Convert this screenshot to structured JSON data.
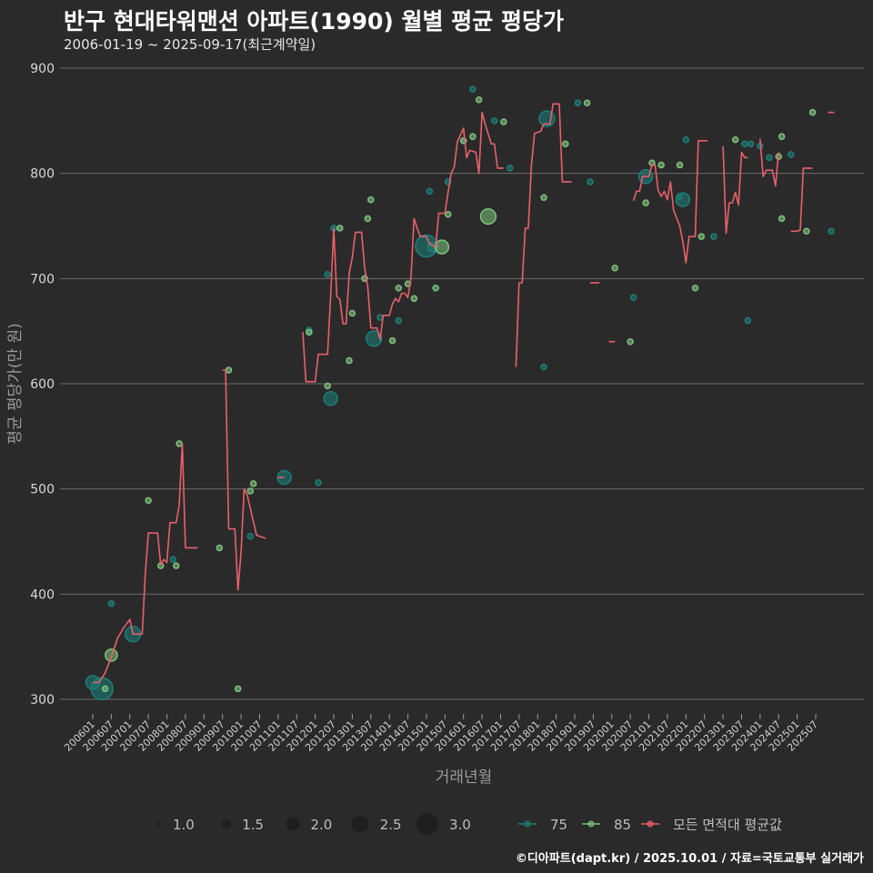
{
  "chart_data": {
    "type": "line",
    "title": "반구 현대타워맨션 아파트(1990) 월별 평균 평당가",
    "subtitle": "2006-01-19 ~ 2025-09-17(최근계약일)",
    "xlabel": "거래년월",
    "ylabel": "평균 평당가(만 원)",
    "ylim": [
      280,
      910
    ],
    "yticks": [
      300,
      400,
      500,
      600,
      700,
      800,
      900
    ],
    "xticks": [
      "200601",
      "200607",
      "200701",
      "200707",
      "200801",
      "200807",
      "200901",
      "200907",
      "201001",
      "201007",
      "201101",
      "201107",
      "201201",
      "201207",
      "201301",
      "201307",
      "201401",
      "201407",
      "201501",
      "201507",
      "201601",
      "201607",
      "201701",
      "201707",
      "201801",
      "201807",
      "201901",
      "201907",
      "202001",
      "202007",
      "202101",
      "202107",
      "202201",
      "202207",
      "202301",
      "202307",
      "202401",
      "202407",
      "202501",
      "202507"
    ],
    "grid": true,
    "legend_position": "bottom",
    "size_legend": {
      "title": "",
      "values": [
        1.0,
        1.5,
        2.0,
        2.5,
        3.0
      ],
      "labels": [
        "1.0",
        "1.5",
        "2.0",
        "2.5",
        "3.0"
      ]
    },
    "series": [
      {
        "name": "모든 면적대 평균값",
        "color": "#e8606a",
        "segments": [
          [
            [
              "2006-01",
              316
            ],
            [
              "2006-03",
              316
            ],
            [
              "2006-05",
              325
            ],
            [
              "2006-07",
              340
            ],
            [
              "2006-09",
              358
            ],
            [
              "2006-11",
              368
            ],
            [
              "2007-01",
              376
            ],
            [
              "2007-02",
              362
            ],
            [
              "2007-05",
              362
            ],
            [
              "2007-06",
              420
            ],
            [
              "2007-07",
              458
            ],
            [
              "2007-10",
              458
            ],
            [
              "2007-11",
              428
            ],
            [
              "2007-12",
              433
            ],
            [
              "2008-01",
              430
            ],
            [
              "2008-02",
              468
            ],
            [
              "2008-04",
              468
            ],
            [
              "2008-05",
              485
            ],
            [
              "2008-06",
              543
            ],
            [
              "2008-07",
              444
            ],
            [
              "2008-11",
              444
            ]
          ],
          [
            [
              "2009-07",
              613
            ],
            [
              "2009-08",
              613
            ],
            [
              "2009-09",
              462
            ],
            [
              "2009-11",
              462
            ],
            [
              "2009-12",
              404
            ],
            [
              "2010-01",
              440
            ],
            [
              "2010-02",
              500
            ],
            [
              "2010-03",
              494
            ],
            [
              "2010-06",
              456
            ],
            [
              "2010-09",
              453
            ]
          ],
          [
            [
              "2011-01",
              511
            ],
            [
              "2011-03",
              511
            ]
          ],
          [
            [
              "2011-09",
              649
            ],
            [
              "2011-10",
              602
            ],
            [
              "2012-01",
              602
            ],
            [
              "2012-02",
              628
            ],
            [
              "2012-05",
              628
            ],
            [
              "2012-06",
              683
            ],
            [
              "2012-07",
              748
            ],
            [
              "2012-08",
              683
            ],
            [
              "2012-09",
              680
            ],
            [
              "2012-10",
              657
            ],
            [
              "2012-11",
              657
            ],
            [
              "2012-12",
              705
            ],
            [
              "2013-01",
              720
            ],
            [
              "2013-02",
              744
            ],
            [
              "2013-04",
              744
            ],
            [
              "2013-05",
              710
            ],
            [
              "2013-06",
              692
            ],
            [
              "2013-07",
              653
            ],
            [
              "2013-09",
              653
            ],
            [
              "2013-10",
              642
            ],
            [
              "2013-11",
              665
            ],
            [
              "2014-01",
              665
            ],
            [
              "2014-02",
              676
            ],
            [
              "2014-03",
              681
            ],
            [
              "2014-04",
              678
            ],
            [
              "2014-05",
              686
            ],
            [
              "2014-06",
              686
            ],
            [
              "2014-07",
              682
            ],
            [
              "2014-08",
              700
            ],
            [
              "2014-09",
              757
            ],
            [
              "2014-10",
              748
            ],
            [
              "2014-11",
              740
            ],
            [
              "2015-01",
              740
            ],
            [
              "2015-02",
              733
            ],
            [
              "2015-04",
              730
            ],
            [
              "2015-05",
              762
            ],
            [
              "2015-07",
              762
            ],
            [
              "2015-08",
              782
            ],
            [
              "2015-09",
              800
            ],
            [
              "2015-10",
              806
            ],
            [
              "2015-11",
              830
            ],
            [
              "2016-01",
              843
            ],
            [
              "2016-02",
              815
            ],
            [
              "2016-03",
              822
            ],
            [
              "2016-05",
              820
            ],
            [
              "2016-06",
              800
            ],
            [
              "2016-07",
              858
            ],
            [
              "2016-08",
              847
            ],
            [
              "2016-10",
              828
            ],
            [
              "2016-11",
              828
            ],
            [
              "2016-12",
              805
            ],
            [
              "2017-02",
              805
            ]
          ],
          [
            [
              "2017-06",
              616
            ],
            [
              "2017-07",
              696
            ],
            [
              "2017-08",
              696
            ],
            [
              "2017-09",
              748
            ],
            [
              "2017-10",
              748
            ],
            [
              "2017-11",
              808
            ],
            [
              "2017-12",
              838
            ],
            [
              "2018-02",
              840
            ],
            [
              "2018-03",
              847
            ],
            [
              "2018-05",
              847
            ],
            [
              "2018-06",
              866
            ],
            [
              "2018-08",
              866
            ],
            [
              "2018-09",
              792
            ],
            [
              "2018-12",
              792
            ]
          ],
          [
            [
              "2019-06",
              696
            ],
            [
              "2019-09",
              696
            ]
          ],
          [
            [
              "2019-12",
              640
            ],
            [
              "2020-02",
              640
            ]
          ],
          [
            [
              "2020-08",
              774
            ],
            [
              "2020-09",
              783
            ],
            [
              "2020-10",
              783
            ],
            [
              "2020-11",
              797
            ],
            [
              "2021-01",
              797
            ],
            [
              "2021-02",
              808
            ],
            [
              "2021-03",
              808
            ],
            [
              "2021-04",
              784
            ],
            [
              "2021-05",
              778
            ],
            [
              "2021-06",
              783
            ],
            [
              "2021-07",
              775
            ],
            [
              "2021-08",
              792
            ],
            [
              "2021-09",
              765
            ],
            [
              "2021-11",
              750
            ],
            [
              "2021-12",
              735
            ],
            [
              "2022-01",
              715
            ],
            [
              "2022-02",
              740
            ],
            [
              "2022-04",
              740
            ],
            [
              "2022-05",
              831
            ],
            [
              "2022-08",
              831
            ]
          ],
          [
            [
              "2023-01",
              826
            ],
            [
              "2023-02",
              743
            ],
            [
              "2023-03",
              772
            ],
            [
              "2023-04",
              772
            ],
            [
              "2023-05",
              782
            ],
            [
              "2023-06",
              770
            ],
            [
              "2023-07",
              820
            ],
            [
              "2023-08",
              815
            ],
            [
              "2023-09",
              815
            ]
          ],
          [
            [
              "2024-01",
              833
            ],
            [
              "2024-02",
              797
            ],
            [
              "2024-03",
              803
            ],
            [
              "2024-05",
              803
            ],
            [
              "2024-06",
              788
            ],
            [
              "2024-07",
              820
            ]
          ],
          [
            [
              "2024-11",
              745
            ],
            [
              "2025-01",
              745
            ],
            [
              "2025-02",
              746
            ],
            [
              "2025-03",
              805
            ],
            [
              "2025-06",
              805
            ]
          ],
          [
            [
              "2025-11",
              858
            ],
            [
              "2026-01",
              858
            ]
          ]
        ]
      },
      {
        "name": "75",
        "color": "#1a7f7a",
        "points": [
          [
            "2006-01",
            316,
            2.0
          ],
          [
            "2006-04",
            310,
            3.0
          ],
          [
            "2006-07",
            391,
            1.0
          ],
          [
            "2007-02",
            362,
            2.2
          ],
          [
            "2008-03",
            433,
            1.0
          ],
          [
            "2010-04",
            455,
            1.0
          ],
          [
            "2011-03",
            511,
            2.0
          ],
          [
            "2011-11",
            651,
            1.0
          ],
          [
            "2012-02",
            506,
            1.0
          ],
          [
            "2012-05",
            704,
            1.0
          ],
          [
            "2012-06",
            586,
            2.0
          ],
          [
            "2012-07",
            748,
            1.0
          ],
          [
            "2013-08",
            643,
            2.2
          ],
          [
            "2013-10",
            663,
            1.0
          ],
          [
            "2014-04",
            660,
            1.0
          ],
          [
            "2015-01",
            731,
            3.0
          ],
          [
            "2015-02",
            783,
            1.0
          ],
          [
            "2015-03",
            730,
            1.5
          ],
          [
            "2015-08",
            792,
            1.0
          ],
          [
            "2016-01",
            831,
            1.0
          ],
          [
            "2016-04",
            880,
            1.0
          ],
          [
            "2016-11",
            850,
            1.0
          ],
          [
            "2017-04",
            805,
            1.0
          ],
          [
            "2018-03",
            616,
            1.0
          ],
          [
            "2018-04",
            852,
            2.2
          ],
          [
            "2019-02",
            867,
            1.0
          ],
          [
            "2019-06",
            792,
            1.0
          ],
          [
            "2020-08",
            682,
            1.0
          ],
          [
            "2020-12",
            797,
            2.0
          ],
          [
            "2021-11",
            778,
            1.0
          ],
          [
            "2021-12",
            775,
            2.0
          ],
          [
            "2022-01",
            832,
            1.0
          ],
          [
            "2022-10",
            740,
            1.0
          ],
          [
            "2023-08",
            828,
            1.0
          ],
          [
            "2023-09",
            660,
            1.0
          ],
          [
            "2023-10",
            828,
            1.0
          ],
          [
            "2024-01",
            826,
            1.0
          ],
          [
            "2024-04",
            815,
            1.0
          ],
          [
            "2024-11",
            818,
            1.0
          ],
          [
            "2025-12",
            745,
            1.0
          ]
        ]
      },
      {
        "name": "85",
        "color": "#7cc27a",
        "points": [
          [
            "2006-07",
            342,
            1.8
          ],
          [
            "2006-05",
            310,
            1.0
          ],
          [
            "2007-07",
            489,
            1.0
          ],
          [
            "2007-11",
            427,
            1.0
          ],
          [
            "2008-04",
            427,
            1.0
          ],
          [
            "2008-05",
            543,
            1.0
          ],
          [
            "2009-06",
            444,
            1.0
          ],
          [
            "2009-09",
            613,
            1.0
          ],
          [
            "2009-12",
            310,
            1.0
          ],
          [
            "2010-05",
            505,
            1.0
          ],
          [
            "2010-04",
            498,
            1.0
          ],
          [
            "2011-11",
            649,
            1.0
          ],
          [
            "2012-05",
            598,
            1.0
          ],
          [
            "2012-09",
            748,
            1.0
          ],
          [
            "2012-12",
            622,
            1.0
          ],
          [
            "2013-01",
            667,
            1.0
          ],
          [
            "2013-05",
            700,
            1.0
          ],
          [
            "2013-06",
            757,
            1.0
          ],
          [
            "2013-07",
            775,
            1.0
          ],
          [
            "2014-02",
            641,
            1.0
          ],
          [
            "2014-04",
            691,
            1.0
          ],
          [
            "2014-07",
            695,
            1.0
          ],
          [
            "2014-09",
            681,
            1.0
          ],
          [
            "2015-04",
            691,
            1.0
          ],
          [
            "2015-06",
            730,
            2.0
          ],
          [
            "2015-08",
            761,
            1.0
          ],
          [
            "2016-01",
            831,
            1.0
          ],
          [
            "2016-04",
            835,
            1.0
          ],
          [
            "2016-06",
            870,
            1.0
          ],
          [
            "2016-09",
            759,
            2.2
          ],
          [
            "2017-02",
            849,
            1.0
          ],
          [
            "2018-03",
            777,
            1.0
          ],
          [
            "2018-10",
            828,
            1.0
          ],
          [
            "2019-05",
            867,
            1.0
          ],
          [
            "2020-02",
            710,
            1.0
          ],
          [
            "2020-07",
            640,
            1.0
          ],
          [
            "2020-12",
            772,
            1.0
          ],
          [
            "2021-02",
            810,
            1.0
          ],
          [
            "2021-05",
            808,
            1.0
          ],
          [
            "2021-11",
            808,
            1.0
          ],
          [
            "2022-04",
            691,
            1.0
          ],
          [
            "2022-06",
            740,
            1.0
          ],
          [
            "2023-05",
            832,
            1.0
          ],
          [
            "2024-07",
            816,
            1.0
          ],
          [
            "2024-08",
            835,
            1.0
          ],
          [
            "2024-08",
            757,
            1.0
          ],
          [
            "2025-04",
            745,
            1.0
          ],
          [
            "2025-06",
            858,
            1.0
          ]
        ]
      }
    ],
    "footer": "©디아파트(dapt.kr) / 2025.10.01 / 자료=국토교통부 실거래가"
  }
}
